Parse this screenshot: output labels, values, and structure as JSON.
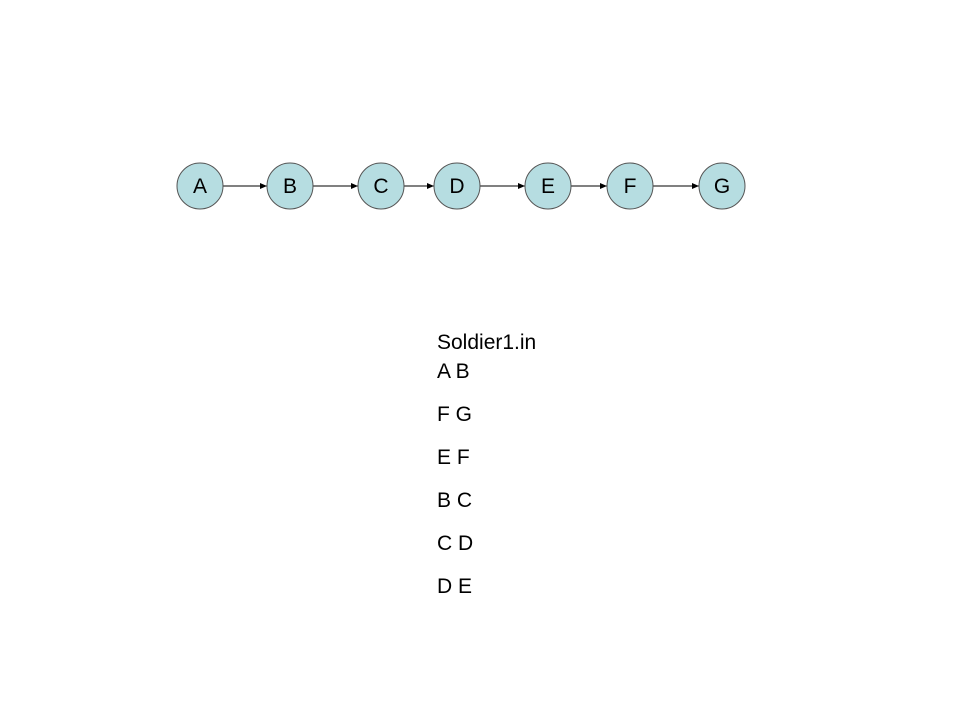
{
  "diagram": {
    "node_fill": "#b6dde1",
    "node_stroke": "#555555",
    "edge_color": "#000000",
    "nodes": [
      "A",
      "B",
      "C",
      "D",
      "E",
      "F",
      "G"
    ],
    "edges": [
      [
        "A",
        "B"
      ],
      [
        "B",
        "C"
      ],
      [
        "C",
        "D"
      ],
      [
        "D",
        "E"
      ],
      [
        "E",
        "F"
      ],
      [
        "F",
        "G"
      ]
    ]
  },
  "file": {
    "title": "Soldier1.in",
    "lines": [
      "A B",
      "F G",
      "E F",
      "B C",
      "C D",
      "D E"
    ]
  }
}
